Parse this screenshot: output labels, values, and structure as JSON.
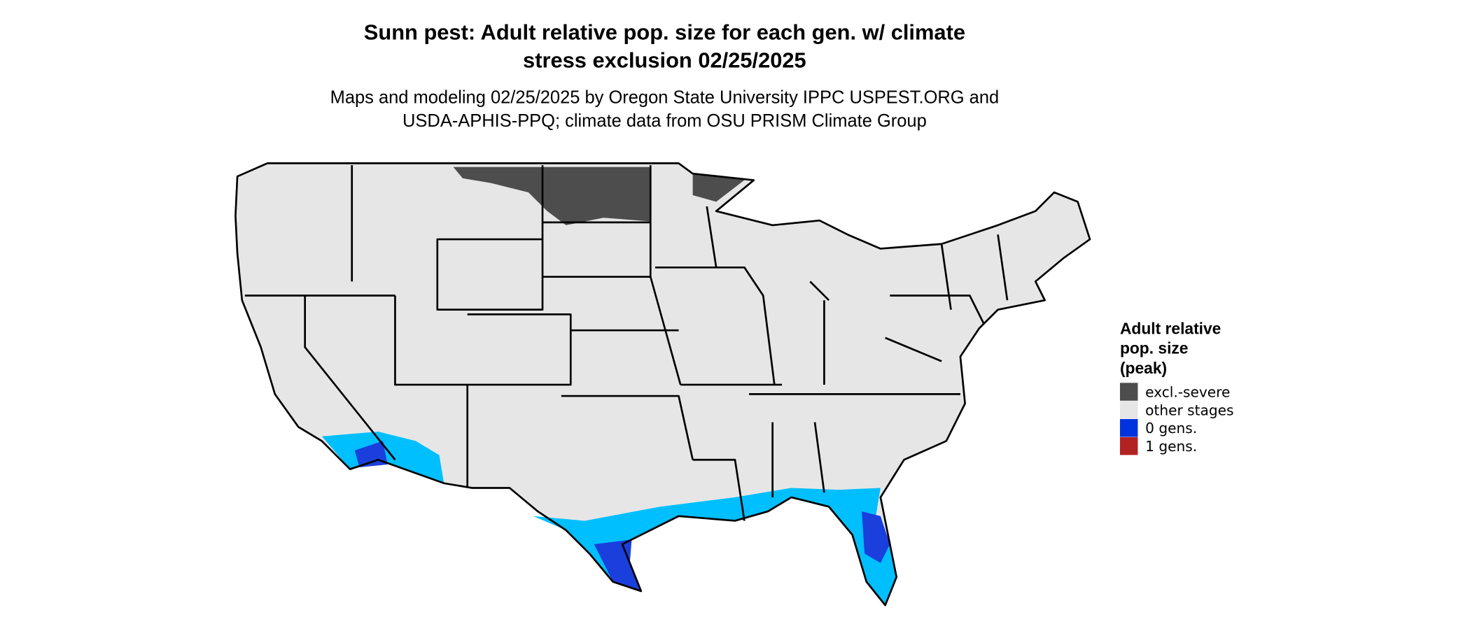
{
  "title": [
    "Sunn pest: Adult relative pop. size for each gen. w/ climate",
    "stress exclusion 02/25/2025"
  ],
  "subtitle": [
    "Maps and modeling 02/25/2025 by Oregon State University IPPC USPEST.ORG and",
    "USDA-APHIS-PPQ; climate data from OSU PRISM Climate Group"
  ],
  "legend": {
    "title": [
      "Adult relative",
      "pop. size",
      "(peak)"
    ],
    "items": [
      {
        "label": "excl.-severe",
        "color": "#4d4d4d"
      },
      {
        "label": "other stages",
        "color": "#e6e6e6"
      },
      {
        "label": "0 gens.",
        "color": "#0033dd"
      },
      {
        "label": "1 gens.",
        "color": "#b22222"
      }
    ]
  }
}
